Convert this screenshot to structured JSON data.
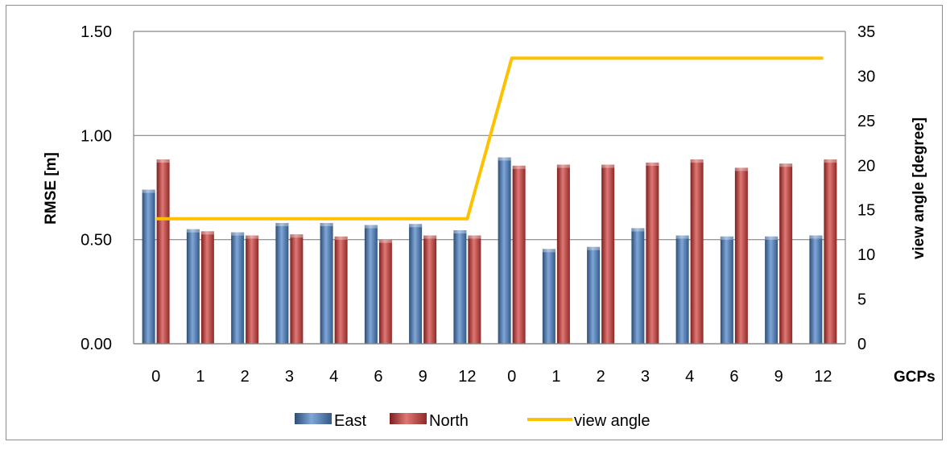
{
  "chart_data": {
    "type": "bar",
    "categories": [
      "0",
      "1",
      "2",
      "3",
      "4",
      "6",
      "9",
      "12",
      "0",
      "1",
      "2",
      "3",
      "4",
      "6",
      "9",
      "12"
    ],
    "series": [
      {
        "name": "East",
        "kind": "bar",
        "axis": "left",
        "color": "#4f81bd",
        "values": [
          0.74,
          0.55,
          0.535,
          0.58,
          0.58,
          0.57,
          0.575,
          0.545,
          0.895,
          0.455,
          0.465,
          0.555,
          0.52,
          0.515,
          0.515,
          0.52
        ]
      },
      {
        "name": "North",
        "kind": "bar",
        "axis": "left",
        "color": "#c0504d",
        "values": [
          0.885,
          0.54,
          0.52,
          0.525,
          0.515,
          0.5,
          0.52,
          0.52,
          0.855,
          0.86,
          0.86,
          0.87,
          0.885,
          0.845,
          0.865,
          0.885
        ]
      },
      {
        "name": "view angle",
        "kind": "line",
        "axis": "right",
        "color": "#ffc000",
        "values": [
          14,
          14,
          14,
          14,
          14,
          14,
          14,
          14,
          32,
          32,
          32,
          32,
          32,
          32,
          32,
          32
        ]
      }
    ],
    "ylabel": "RMSE [m]",
    "y2label": "view angle [degree]",
    "xlabel": "GCPs",
    "ylim": [
      0,
      1.5
    ],
    "y2lim": [
      0,
      35
    ],
    "yticks": [
      "0.00",
      "0.50",
      "1.00",
      "1.50"
    ],
    "y2ticks": [
      "0",
      "5",
      "10",
      "15",
      "20",
      "25",
      "30",
      "35"
    ],
    "grid": true,
    "legend_position": "bottom"
  }
}
